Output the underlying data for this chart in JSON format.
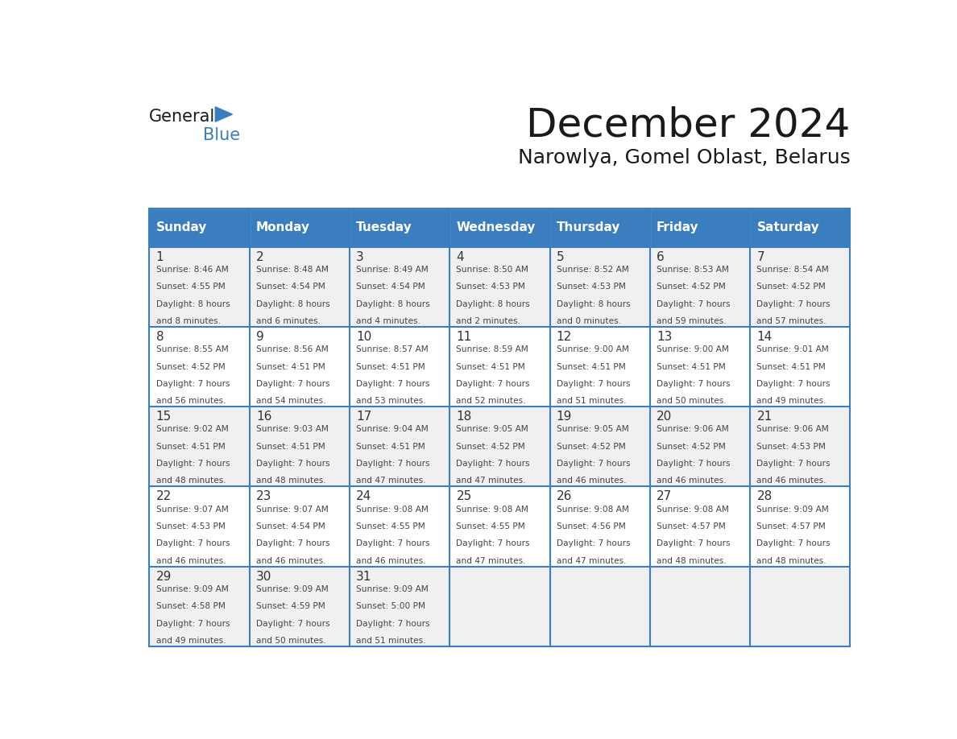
{
  "title": "December 2024",
  "subtitle": "Narowlya, Gomel Oblast, Belarus",
  "days_of_week": [
    "Sunday",
    "Monday",
    "Tuesday",
    "Wednesday",
    "Thursday",
    "Friday",
    "Saturday"
  ],
  "header_bg": "#3a7ebf",
  "header_text": "#ffffff",
  "cell_bg_odd": "#f0f0f0",
  "cell_bg_even": "#ffffff",
  "day_num_color": "#333333",
  "text_color": "#444444",
  "title_color": "#1a1a1a",
  "logo_general_color": "#1a1a1a",
  "logo_blue_color": "#3a7ebf",
  "weeks": [
    [
      {
        "day": 1,
        "sunrise": "8:46 AM",
        "sunset": "4:55 PM",
        "daylight_h": "8 hours",
        "daylight_m": "and 8 minutes."
      },
      {
        "day": 2,
        "sunrise": "8:48 AM",
        "sunset": "4:54 PM",
        "daylight_h": "8 hours",
        "daylight_m": "and 6 minutes."
      },
      {
        "day": 3,
        "sunrise": "8:49 AM",
        "sunset": "4:54 PM",
        "daylight_h": "8 hours",
        "daylight_m": "and 4 minutes."
      },
      {
        "day": 4,
        "sunrise": "8:50 AM",
        "sunset": "4:53 PM",
        "daylight_h": "8 hours",
        "daylight_m": "and 2 minutes."
      },
      {
        "day": 5,
        "sunrise": "8:52 AM",
        "sunset": "4:53 PM",
        "daylight_h": "8 hours",
        "daylight_m": "and 0 minutes."
      },
      {
        "day": 6,
        "sunrise": "8:53 AM",
        "sunset": "4:52 PM",
        "daylight_h": "7 hours",
        "daylight_m": "and 59 minutes."
      },
      {
        "day": 7,
        "sunrise": "8:54 AM",
        "sunset": "4:52 PM",
        "daylight_h": "7 hours",
        "daylight_m": "and 57 minutes."
      }
    ],
    [
      {
        "day": 8,
        "sunrise": "8:55 AM",
        "sunset": "4:52 PM",
        "daylight_h": "7 hours",
        "daylight_m": "and 56 minutes."
      },
      {
        "day": 9,
        "sunrise": "8:56 AM",
        "sunset": "4:51 PM",
        "daylight_h": "7 hours",
        "daylight_m": "and 54 minutes."
      },
      {
        "day": 10,
        "sunrise": "8:57 AM",
        "sunset": "4:51 PM",
        "daylight_h": "7 hours",
        "daylight_m": "and 53 minutes."
      },
      {
        "day": 11,
        "sunrise": "8:59 AM",
        "sunset": "4:51 PM",
        "daylight_h": "7 hours",
        "daylight_m": "and 52 minutes."
      },
      {
        "day": 12,
        "sunrise": "9:00 AM",
        "sunset": "4:51 PM",
        "daylight_h": "7 hours",
        "daylight_m": "and 51 minutes."
      },
      {
        "day": 13,
        "sunrise": "9:00 AM",
        "sunset": "4:51 PM",
        "daylight_h": "7 hours",
        "daylight_m": "and 50 minutes."
      },
      {
        "day": 14,
        "sunrise": "9:01 AM",
        "sunset": "4:51 PM",
        "daylight_h": "7 hours",
        "daylight_m": "and 49 minutes."
      }
    ],
    [
      {
        "day": 15,
        "sunrise": "9:02 AM",
        "sunset": "4:51 PM",
        "daylight_h": "7 hours",
        "daylight_m": "and 48 minutes."
      },
      {
        "day": 16,
        "sunrise": "9:03 AM",
        "sunset": "4:51 PM",
        "daylight_h": "7 hours",
        "daylight_m": "and 48 minutes."
      },
      {
        "day": 17,
        "sunrise": "9:04 AM",
        "sunset": "4:51 PM",
        "daylight_h": "7 hours",
        "daylight_m": "and 47 minutes."
      },
      {
        "day": 18,
        "sunrise": "9:05 AM",
        "sunset": "4:52 PM",
        "daylight_h": "7 hours",
        "daylight_m": "and 47 minutes."
      },
      {
        "day": 19,
        "sunrise": "9:05 AM",
        "sunset": "4:52 PM",
        "daylight_h": "7 hours",
        "daylight_m": "and 46 minutes."
      },
      {
        "day": 20,
        "sunrise": "9:06 AM",
        "sunset": "4:52 PM",
        "daylight_h": "7 hours",
        "daylight_m": "and 46 minutes."
      },
      {
        "day": 21,
        "sunrise": "9:06 AM",
        "sunset": "4:53 PM",
        "daylight_h": "7 hours",
        "daylight_m": "and 46 minutes."
      }
    ],
    [
      {
        "day": 22,
        "sunrise": "9:07 AM",
        "sunset": "4:53 PM",
        "daylight_h": "7 hours",
        "daylight_m": "and 46 minutes."
      },
      {
        "day": 23,
        "sunrise": "9:07 AM",
        "sunset": "4:54 PM",
        "daylight_h": "7 hours",
        "daylight_m": "and 46 minutes."
      },
      {
        "day": 24,
        "sunrise": "9:08 AM",
        "sunset": "4:55 PM",
        "daylight_h": "7 hours",
        "daylight_m": "and 46 minutes."
      },
      {
        "day": 25,
        "sunrise": "9:08 AM",
        "sunset": "4:55 PM",
        "daylight_h": "7 hours",
        "daylight_m": "and 47 minutes."
      },
      {
        "day": 26,
        "sunrise": "9:08 AM",
        "sunset": "4:56 PM",
        "daylight_h": "7 hours",
        "daylight_m": "and 47 minutes."
      },
      {
        "day": 27,
        "sunrise": "9:08 AM",
        "sunset": "4:57 PM",
        "daylight_h": "7 hours",
        "daylight_m": "and 48 minutes."
      },
      {
        "day": 28,
        "sunrise": "9:09 AM",
        "sunset": "4:57 PM",
        "daylight_h": "7 hours",
        "daylight_m": "and 48 minutes."
      }
    ],
    [
      {
        "day": 29,
        "sunrise": "9:09 AM",
        "sunset": "4:58 PM",
        "daylight_h": "7 hours",
        "daylight_m": "and 49 minutes."
      },
      {
        "day": 30,
        "sunrise": "9:09 AM",
        "sunset": "4:59 PM",
        "daylight_h": "7 hours",
        "daylight_m": "and 50 minutes."
      },
      {
        "day": 31,
        "sunrise": "9:09 AM",
        "sunset": "5:00 PM",
        "daylight_h": "7 hours",
        "daylight_m": "and 51 minutes."
      },
      null,
      null,
      null,
      null
    ]
  ]
}
